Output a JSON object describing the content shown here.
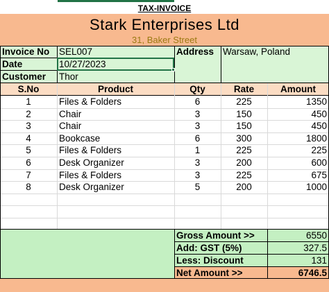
{
  "invoice": {
    "heading": "TAX-INVOICE",
    "company_name": "Stark Enterprises Ltd",
    "company_address": "31, Baker Street",
    "invoice_no_label": "Invoice No",
    "invoice_no": "SEL007",
    "date_label": "Date",
    "date": "10/27/2023",
    "customer_label": "Customer",
    "customer": "Thor",
    "address_label": "Address",
    "address": "Warsaw, Poland"
  },
  "table": {
    "headers": [
      "S.No",
      "Product",
      "Qty",
      "Rate",
      "Amount"
    ],
    "rows": [
      [
        "1",
        "Files & Folders",
        "6",
        "225",
        "1350"
      ],
      [
        "2",
        "Chair",
        "3",
        "150",
        "450"
      ],
      [
        "3",
        "Chair",
        "3",
        "150",
        "450"
      ],
      [
        "4",
        "Bookcase",
        "6",
        "300",
        "1800"
      ],
      [
        "5",
        "Files & Folders",
        "1",
        "225",
        "225"
      ],
      [
        "6",
        "Desk Organizer",
        "3",
        "200",
        "600"
      ],
      [
        "7",
        "Files & Folders",
        "3",
        "225",
        "675"
      ],
      [
        "8",
        "Desk Organizer",
        "5",
        "200",
        "1000"
      ]
    ]
  },
  "totals": {
    "gross_label": "Gross Amount >>",
    "gross_value": "6550",
    "gst_label": "Add: GST (5%)",
    "gst_value": "327.5",
    "discount_label": "Less: Discount",
    "discount_value": "131",
    "net_label": "Net Amount >>",
    "net_value": "6746.5"
  },
  "colors": {
    "peach": "#f8b98f",
    "light_peach": "#fbdcc3",
    "green": "#c4f0c2",
    "light_green": "#d9f5d6",
    "gold_text": "#9c7a12",
    "selection_green": "#217346"
  }
}
